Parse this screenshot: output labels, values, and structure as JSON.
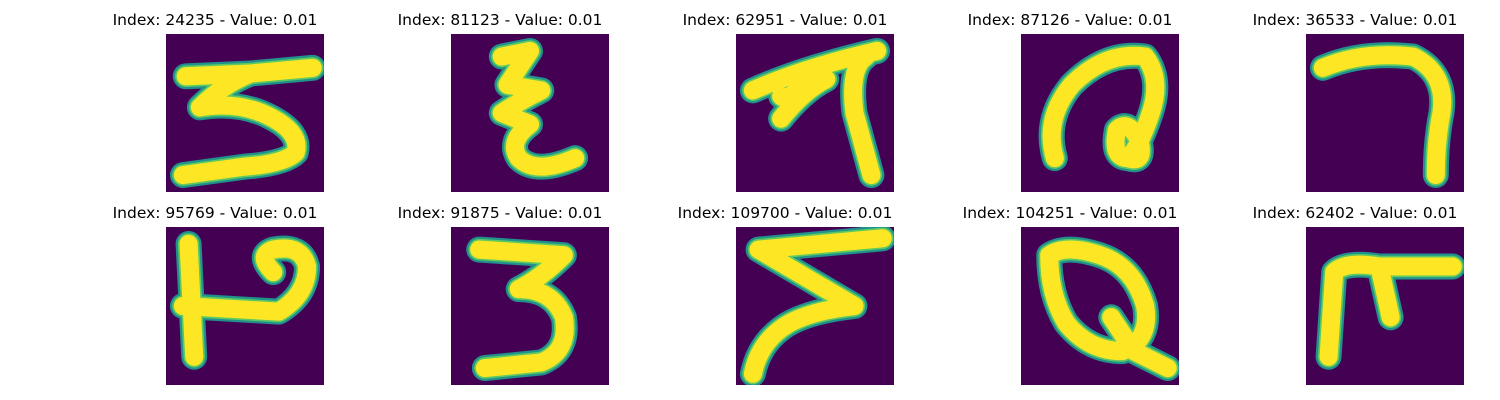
{
  "colors": {
    "background": "#440154",
    "stroke_edge": "#21918c",
    "stroke_mid": "#5ec962",
    "stroke_core": "#fde725"
  },
  "panels": [
    {
      "title": "Index: 24235 - Value: 0.01",
      "glyph": "five-like-stroke"
    },
    {
      "title": "Index: 81123 - Value: 0.01",
      "glyph": "zigzag-stroke"
    },
    {
      "title": "Index: 62951 - Value: 0.01",
      "glyph": "branching-stroke"
    },
    {
      "title": "Index: 87126 - Value: 0.01",
      "glyph": "loop-a-stroke"
    },
    {
      "title": "Index: 36533 - Value: 0.01",
      "glyph": "hook-stroke"
    },
    {
      "title": "Index: 95769 - Value: 0.01",
      "glyph": "p-like-stroke"
    },
    {
      "title": "Index: 91875 - Value: 0.01",
      "glyph": "three-stroke"
    },
    {
      "title": "Index: 109700 - Value: 0.01",
      "glyph": "z-zigzag-stroke"
    },
    {
      "title": "Index: 104251 - Value: 0.01",
      "glyph": "q-stroke"
    },
    {
      "title": "Index: 62402 - Value: 0.01",
      "glyph": "f-like-stroke"
    }
  ]
}
